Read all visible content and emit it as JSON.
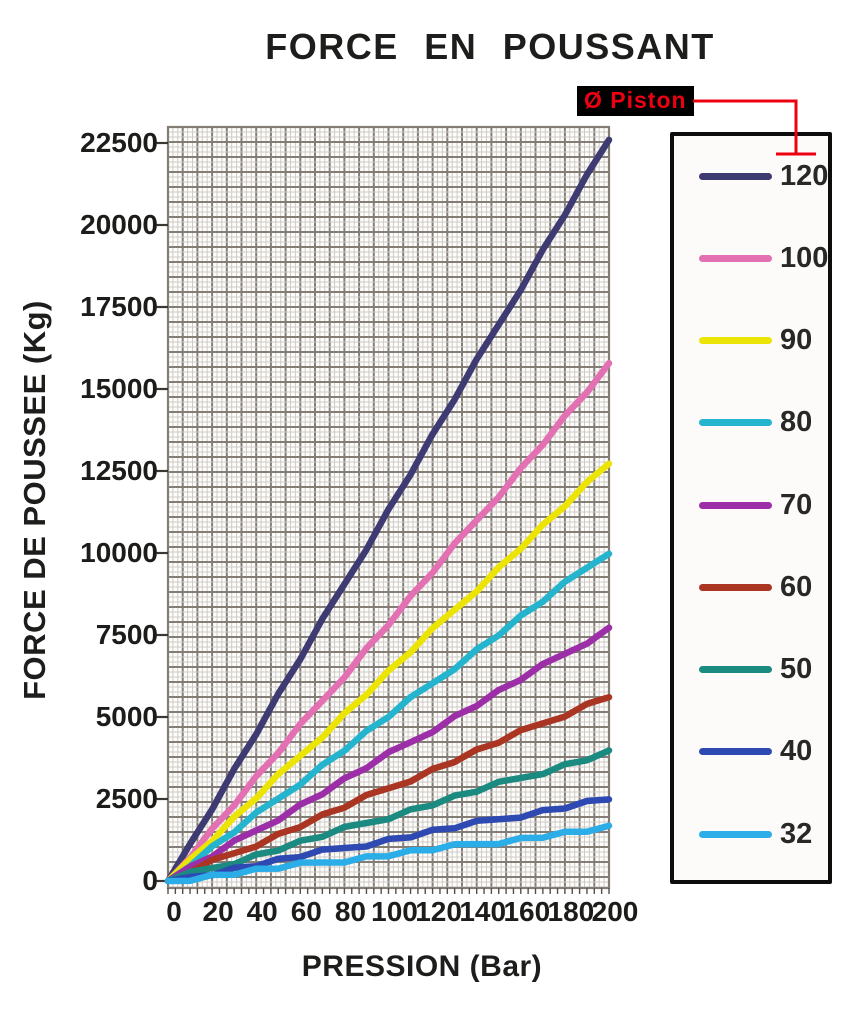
{
  "title": "FORCE EN POUSSANT",
  "annotation": {
    "label": "Ø Piston"
  },
  "colors": {
    "annotation_red": "#ee0013",
    "annotation_bg": "#000000",
    "grid_major": "#837d76",
    "grid_minor": "#cfcac5",
    "tick_text": "#1e1c1a",
    "legend_border": "#0d0d0d"
  },
  "chart_data": {
    "type": "line",
    "title": "FORCE EN POUSSANT",
    "xlabel": "PRESSION (Bar)",
    "ylabel": "FORCE DE POUSSEE (Kg)",
    "x": [
      0,
      20,
      40,
      60,
      80,
      100,
      120,
      140,
      160,
      180,
      200
    ],
    "xticks": [
      0,
      20,
      40,
      60,
      80,
      100,
      120,
      140,
      160,
      180,
      200
    ],
    "yticks": [
      0,
      2500,
      5000,
      7500,
      10000,
      12500,
      15000,
      17500,
      20000,
      22500
    ],
    "xlim": [
      0,
      200
    ],
    "ylim": [
      0,
      23300
    ],
    "grid": "fine graph paper, major and minor lines",
    "legend_title": "Ø Piston",
    "legend_position": "right",
    "series": [
      {
        "name": "120",
        "color": "#3e3a72",
        "values": [
          0,
          2262,
          4524,
          6786,
          9048,
          11310,
          13572,
          15834,
          18096,
          20357,
          22619
        ]
      },
      {
        "name": "100",
        "color": "#e370b2",
        "values": [
          0,
          1571,
          3142,
          4712,
          6283,
          7854,
          9425,
          10996,
          12566,
          14137,
          15708
        ]
      },
      {
        "name": "90",
        "color": "#ece405",
        "values": [
          0,
          1272,
          2545,
          3817,
          5089,
          6362,
          7634,
          8906,
          10179,
          11451,
          12723
        ]
      },
      {
        "name": "80",
        "color": "#25b4cd",
        "values": [
          0,
          1005,
          2011,
          3016,
          4021,
          5027,
          6032,
          7037,
          8042,
          9048,
          10053
        ]
      },
      {
        "name": "70",
        "color": "#9c2fa8",
        "values": [
          0,
          770,
          1539,
          2309,
          3079,
          3848,
          4618,
          5388,
          6158,
          6927,
          7697
        ]
      },
      {
        "name": "60",
        "color": "#aa3522",
        "values": [
          0,
          565,
          1131,
          1696,
          2262,
          2827,
          3393,
          3958,
          4524,
          5089,
          5655
        ]
      },
      {
        "name": "50",
        "color": "#1b8a80",
        "values": [
          0,
          393,
          785,
          1178,
          1571,
          1963,
          2356,
          2749,
          3142,
          3534,
          3927
        ]
      },
      {
        "name": "40",
        "color": "#2e4ab2",
        "values": [
          0,
          251,
          503,
          754,
          1005,
          1257,
          1508,
          1759,
          2011,
          2262,
          2513
        ]
      },
      {
        "name": "32",
        "color": "#2bade8",
        "values": [
          0,
          161,
          322,
          483,
          643,
          804,
          965,
          1126,
          1287,
          1448,
          1608
        ]
      }
    ]
  }
}
